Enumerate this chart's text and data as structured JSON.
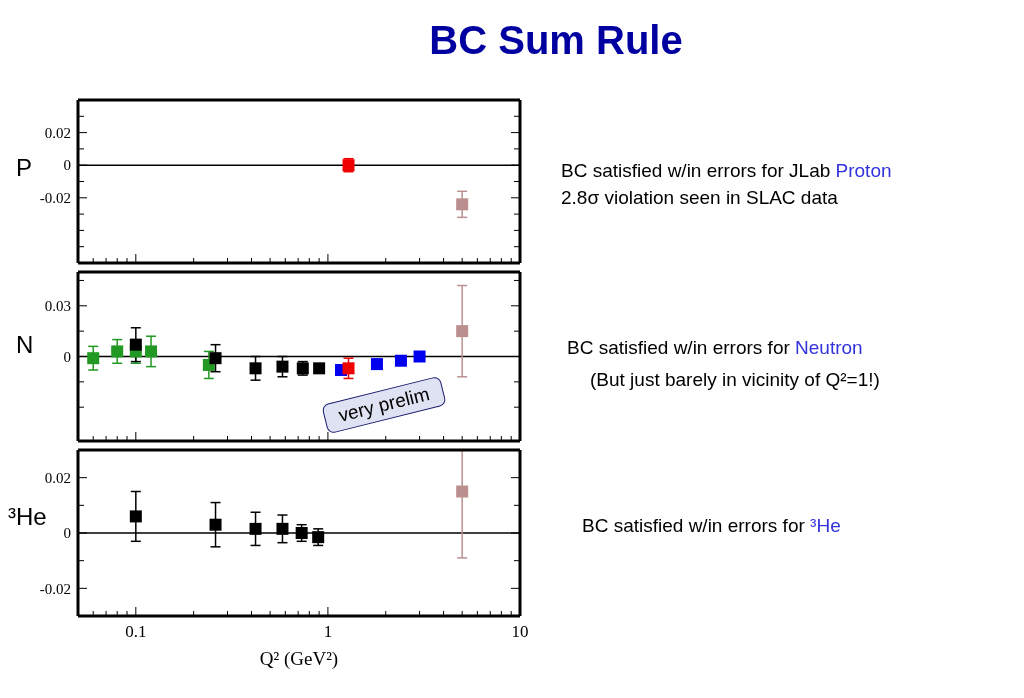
{
  "chart_data": [
    {
      "type": "scatter",
      "title": "BC Sum Rule",
      "ylabel": "P",
      "marker": "square",
      "log": "x",
      "tick_labels": "y",
      "xlim": [
        0.05,
        10
      ],
      "xticks": [
        {
          "value": 0.06,
          "label": null
        },
        {
          "value": 0.07,
          "label": null
        },
        {
          "value": 0.08,
          "label": null
        },
        {
          "value": 0.09,
          "label": null
        },
        0.1,
        {
          "value": 0.2,
          "label": null
        },
        {
          "value": 0.3,
          "label": null
        },
        {
          "value": 0.4,
          "label": null
        },
        {
          "value": 0.5,
          "label": null
        },
        {
          "value": 0.6,
          "label": null
        },
        {
          "value": 0.7,
          "label": null
        },
        {
          "value": 0.8,
          "label": null
        },
        {
          "value": 0.9,
          "label": null
        },
        1,
        {
          "value": 2,
          "label": null
        },
        {
          "value": 3,
          "label": null
        },
        {
          "value": 4,
          "label": null
        },
        {
          "value": 5,
          "label": null
        },
        {
          "value": 6,
          "label": null
        },
        {
          "value": 7,
          "label": null
        },
        {
          "value": 8,
          "label": null
        },
        {
          "value": 9,
          "label": null
        },
        10
      ],
      "ylim": [
        -0.06,
        0.04
      ],
      "yticks": [
        {
          "value": -0.05,
          "label": null
        },
        {
          "value": -0.04,
          "label": null
        },
        {
          "value": -0.03,
          "label": null
        },
        -0.02,
        {
          "value": -0.01,
          "label": null
        },
        0,
        {
          "value": 0.01,
          "label": null
        },
        0.02,
        {
          "value": 0.03,
          "label": null
        }
      ],
      "ref_lines": [
        {
          "axis": "y",
          "value": 0
        }
      ],
      "series": [
        {
          "color": "#ee0000",
          "x": [
            1.28
          ],
          "values": [
            0
          ],
          "errors": [
            0.004
          ]
        },
        {
          "color": "#bc8f8f",
          "x": [
            5
          ],
          "values": [
            -0.024
          ],
          "errors": [
            0.008
          ]
        }
      ],
      "annotations": [
        "BC satisfied w/in errors for JLab Proton",
        "2.8σ violation seen in SLAC data"
      ]
    },
    {
      "type": "scatter",
      "ylabel": "N",
      "marker": "square",
      "log": "x",
      "tick_labels": "y",
      "xlim": [
        0.05,
        10
      ],
      "xticks": [
        {
          "value": 0.06,
          "label": null
        },
        {
          "value": 0.07,
          "label": null
        },
        {
          "value": 0.08,
          "label": null
        },
        {
          "value": 0.09,
          "label": null
        },
        0.1,
        {
          "value": 0.2,
          "label": null
        },
        {
          "value": 0.3,
          "label": null
        },
        {
          "value": 0.4,
          "label": null
        },
        {
          "value": 0.5,
          "label": null
        },
        {
          "value": 0.6,
          "label": null
        },
        {
          "value": 0.7,
          "label": null
        },
        {
          "value": 0.8,
          "label": null
        },
        {
          "value": 0.9,
          "label": null
        },
        1,
        {
          "value": 2,
          "label": null
        },
        {
          "value": 3,
          "label": null
        },
        {
          "value": 4,
          "label": null
        },
        {
          "value": 5,
          "label": null
        },
        {
          "value": 6,
          "label": null
        },
        {
          "value": 7,
          "label": null
        },
        {
          "value": 8,
          "label": null
        },
        {
          "value": 9,
          "label": null
        },
        10
      ],
      "ylim": [
        -0.05,
        0.05
      ],
      "yticks": [
        {
          "value": -0.03,
          "label": null
        },
        {
          "value": -0.015,
          "label": null
        },
        0,
        {
          "value": 0.015,
          "label": null
        },
        0.03,
        {
          "value": 0.045,
          "label": null
        }
      ],
      "ref_lines": [
        {
          "axis": "y",
          "value": 0
        }
      ],
      "series": [
        {
          "color": "#229922",
          "x": [
            0.06,
            0.08,
            0.1,
            0.12,
            0.24
          ],
          "values": [
            -0.001,
            0.003,
            0.003,
            0.003,
            -0.005
          ],
          "errors": [
            0.007,
            0.007,
            0.007,
            0.009,
            0.008
          ]
        },
        {
          "color": "#000000",
          "x": [
            0.1,
            0.26,
            0.42,
            0.58,
            0.74,
            0.9
          ],
          "values": [
            0.007,
            -0.001,
            -0.007,
            -0.006,
            -0.007,
            -0.007
          ],
          "errors": [
            0.01,
            0.008,
            0.007,
            0.006,
            0.004,
            null
          ]
        },
        {
          "color": "#0000ee",
          "x": [
            1.17,
            1.8,
            2.4,
            3
          ],
          "values": [
            -0.008,
            -0.0045,
            -0.0025,
            0
          ]
        },
        {
          "color": "#ee0000",
          "x": [
            1.28
          ],
          "values": [
            -0.007
          ],
          "errors": [
            0.006
          ]
        },
        {
          "color": "#bc8f8f",
          "x": [
            5
          ],
          "values": [
            0.015
          ],
          "errors": [
            0.027
          ]
        }
      ],
      "annotations": [
        "BC satisfied w/in errors for Neutron",
        "(But just barely in vicinity of Q²=1!)",
        "very prelim"
      ]
    },
    {
      "type": "scatter",
      "ylabel": "³He",
      "xlabel": "Q² (GeV²)",
      "marker": "square",
      "log": "x",
      "xlim": [
        0.05,
        10
      ],
      "xticks": [
        {
          "value": 0.06,
          "label": null
        },
        {
          "value": 0.07,
          "label": null
        },
        {
          "value": 0.08,
          "label": null
        },
        {
          "value": 0.09,
          "label": null
        },
        0.1,
        {
          "value": 0.2,
          "label": null
        },
        {
          "value": 0.3,
          "label": null
        },
        {
          "value": 0.4,
          "label": null
        },
        {
          "value": 0.5,
          "label": null
        },
        {
          "value": 0.6,
          "label": null
        },
        {
          "value": 0.7,
          "label": null
        },
        {
          "value": 0.8,
          "label": null
        },
        {
          "value": 0.9,
          "label": null
        },
        1,
        {
          "value": 2,
          "label": null
        },
        {
          "value": 3,
          "label": null
        },
        {
          "value": 4,
          "label": null
        },
        {
          "value": 5,
          "label": null
        },
        {
          "value": 6,
          "label": null
        },
        {
          "value": 7,
          "label": null
        },
        {
          "value": 8,
          "label": null
        },
        {
          "value": 9,
          "label": null
        },
        10
      ],
      "ylim": [
        -0.03,
        0.03
      ],
      "yticks": [
        -0.02,
        {
          "value": -0.01,
          "label": null
        },
        0,
        {
          "value": 0.01,
          "label": null
        },
        0.02
      ],
      "ref_lines": [
        {
          "axis": "y",
          "value": 0
        }
      ],
      "series": [
        {
          "color": "#000000",
          "x": [
            0.1,
            0.26,
            0.42,
            0.58,
            0.73,
            0.89
          ],
          "values": [
            0.006,
            0.003,
            0.0015,
            0.0015,
            0,
            -0.0015
          ],
          "errors": [
            0.009,
            0.008,
            0.006,
            0.005,
            0.003,
            0.003
          ]
        },
        {
          "color": "#bc8f8f",
          "x": [
            5
          ],
          "values": [
            0.015
          ],
          "errors": [
            [
              -0.009,
              0.03
            ]
          ]
        }
      ],
      "annotations": [
        "BC satisfied w/in errors for ³He"
      ]
    }
  ]
}
